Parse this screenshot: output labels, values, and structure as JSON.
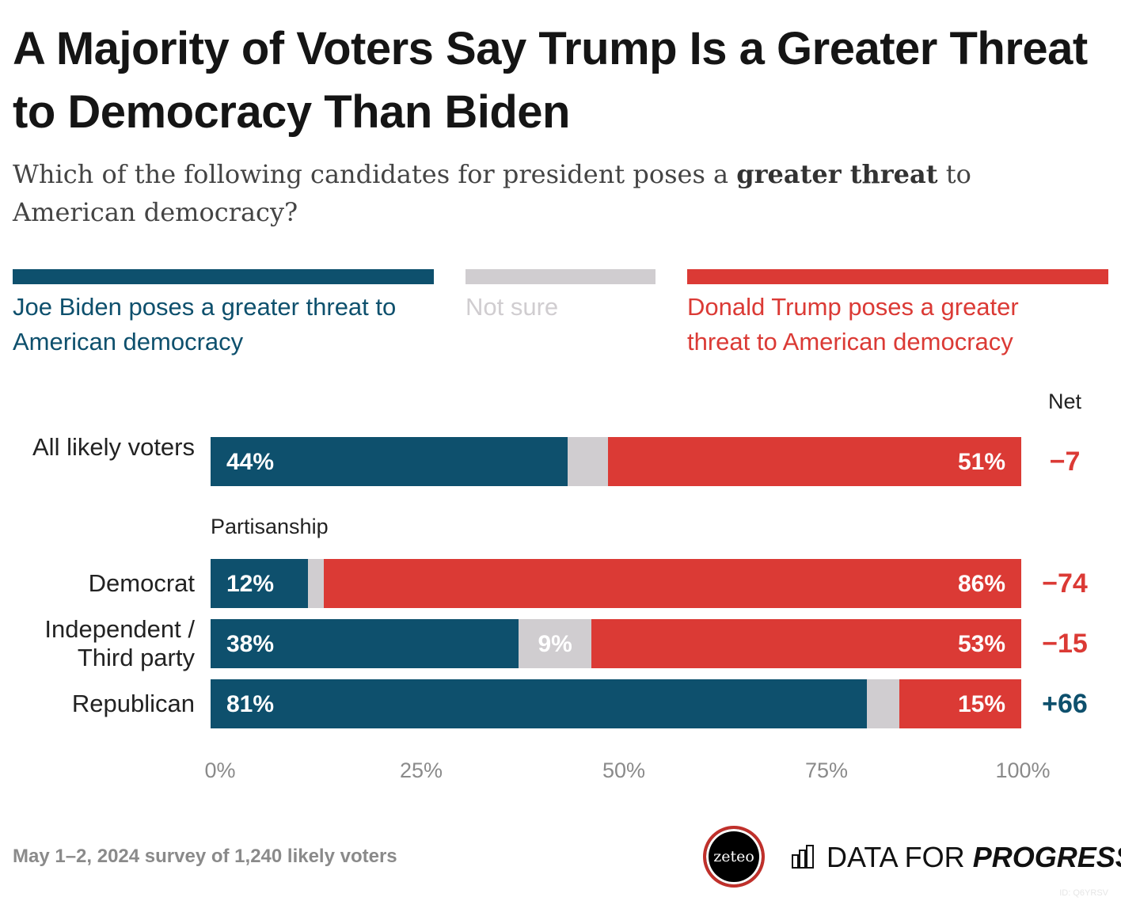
{
  "title": "A Majority of Voters Say Trump Is a Greater Threat to Democracy Than Biden",
  "subtitle": {
    "before": "Which of the following candidates for president poses a ",
    "bold": "greater threat",
    "after": " to American democracy?"
  },
  "colors": {
    "biden": "#0e506d",
    "not_sure": "#d0cdd0",
    "trump": "#db3a35",
    "net_negative": "#db3a35",
    "net_positive": "#0e506d"
  },
  "chart_data": {
    "type": "bar",
    "stacked": true,
    "orientation": "horizontal",
    "legend": [
      {
        "key": "biden",
        "label": "Joe Biden poses a greater threat to American democracy"
      },
      {
        "key": "not_sure",
        "label": "Not sure"
      },
      {
        "key": "trump",
        "label": "Donald Trump poses a greater threat to American democracy"
      }
    ],
    "legend_position": "top",
    "net_header": "Net",
    "group_label": "Partisanship",
    "rows": [
      {
        "label": "All likely voters",
        "biden": 44,
        "not_sure": 5,
        "trump": 51,
        "biden_label": "44%",
        "not_sure_label": "",
        "trump_label": "51%",
        "net": "−7"
      },
      {
        "label": "Democrat",
        "biden": 12,
        "not_sure": 2,
        "trump": 86,
        "biden_label": "12%",
        "not_sure_label": "",
        "trump_label": "86%",
        "net": "−74"
      },
      {
        "label": "Independent / Third party",
        "biden": 38,
        "not_sure": 9,
        "trump": 53,
        "biden_label": "38%",
        "not_sure_label": "9%",
        "trump_label": "53%",
        "net": "−15"
      },
      {
        "label": "Republican",
        "biden": 81,
        "not_sure": 4,
        "trump": 15,
        "biden_label": "81%",
        "not_sure_label": "",
        "trump_label": "15%",
        "net": "+66"
      }
    ],
    "xlim": [
      0,
      100
    ],
    "x_ticks": [
      "0%",
      "25%",
      "50%",
      "75%",
      "100%"
    ],
    "grid": false
  },
  "footer": {
    "source": "May 1–2, 2024 survey of 1,240 likely voters",
    "id": "ID: Q6YRSV"
  },
  "logos": {
    "zeteo": "zeteo",
    "dfp_regular": "DATA FOR ",
    "dfp_bold": "PROGRESS"
  }
}
